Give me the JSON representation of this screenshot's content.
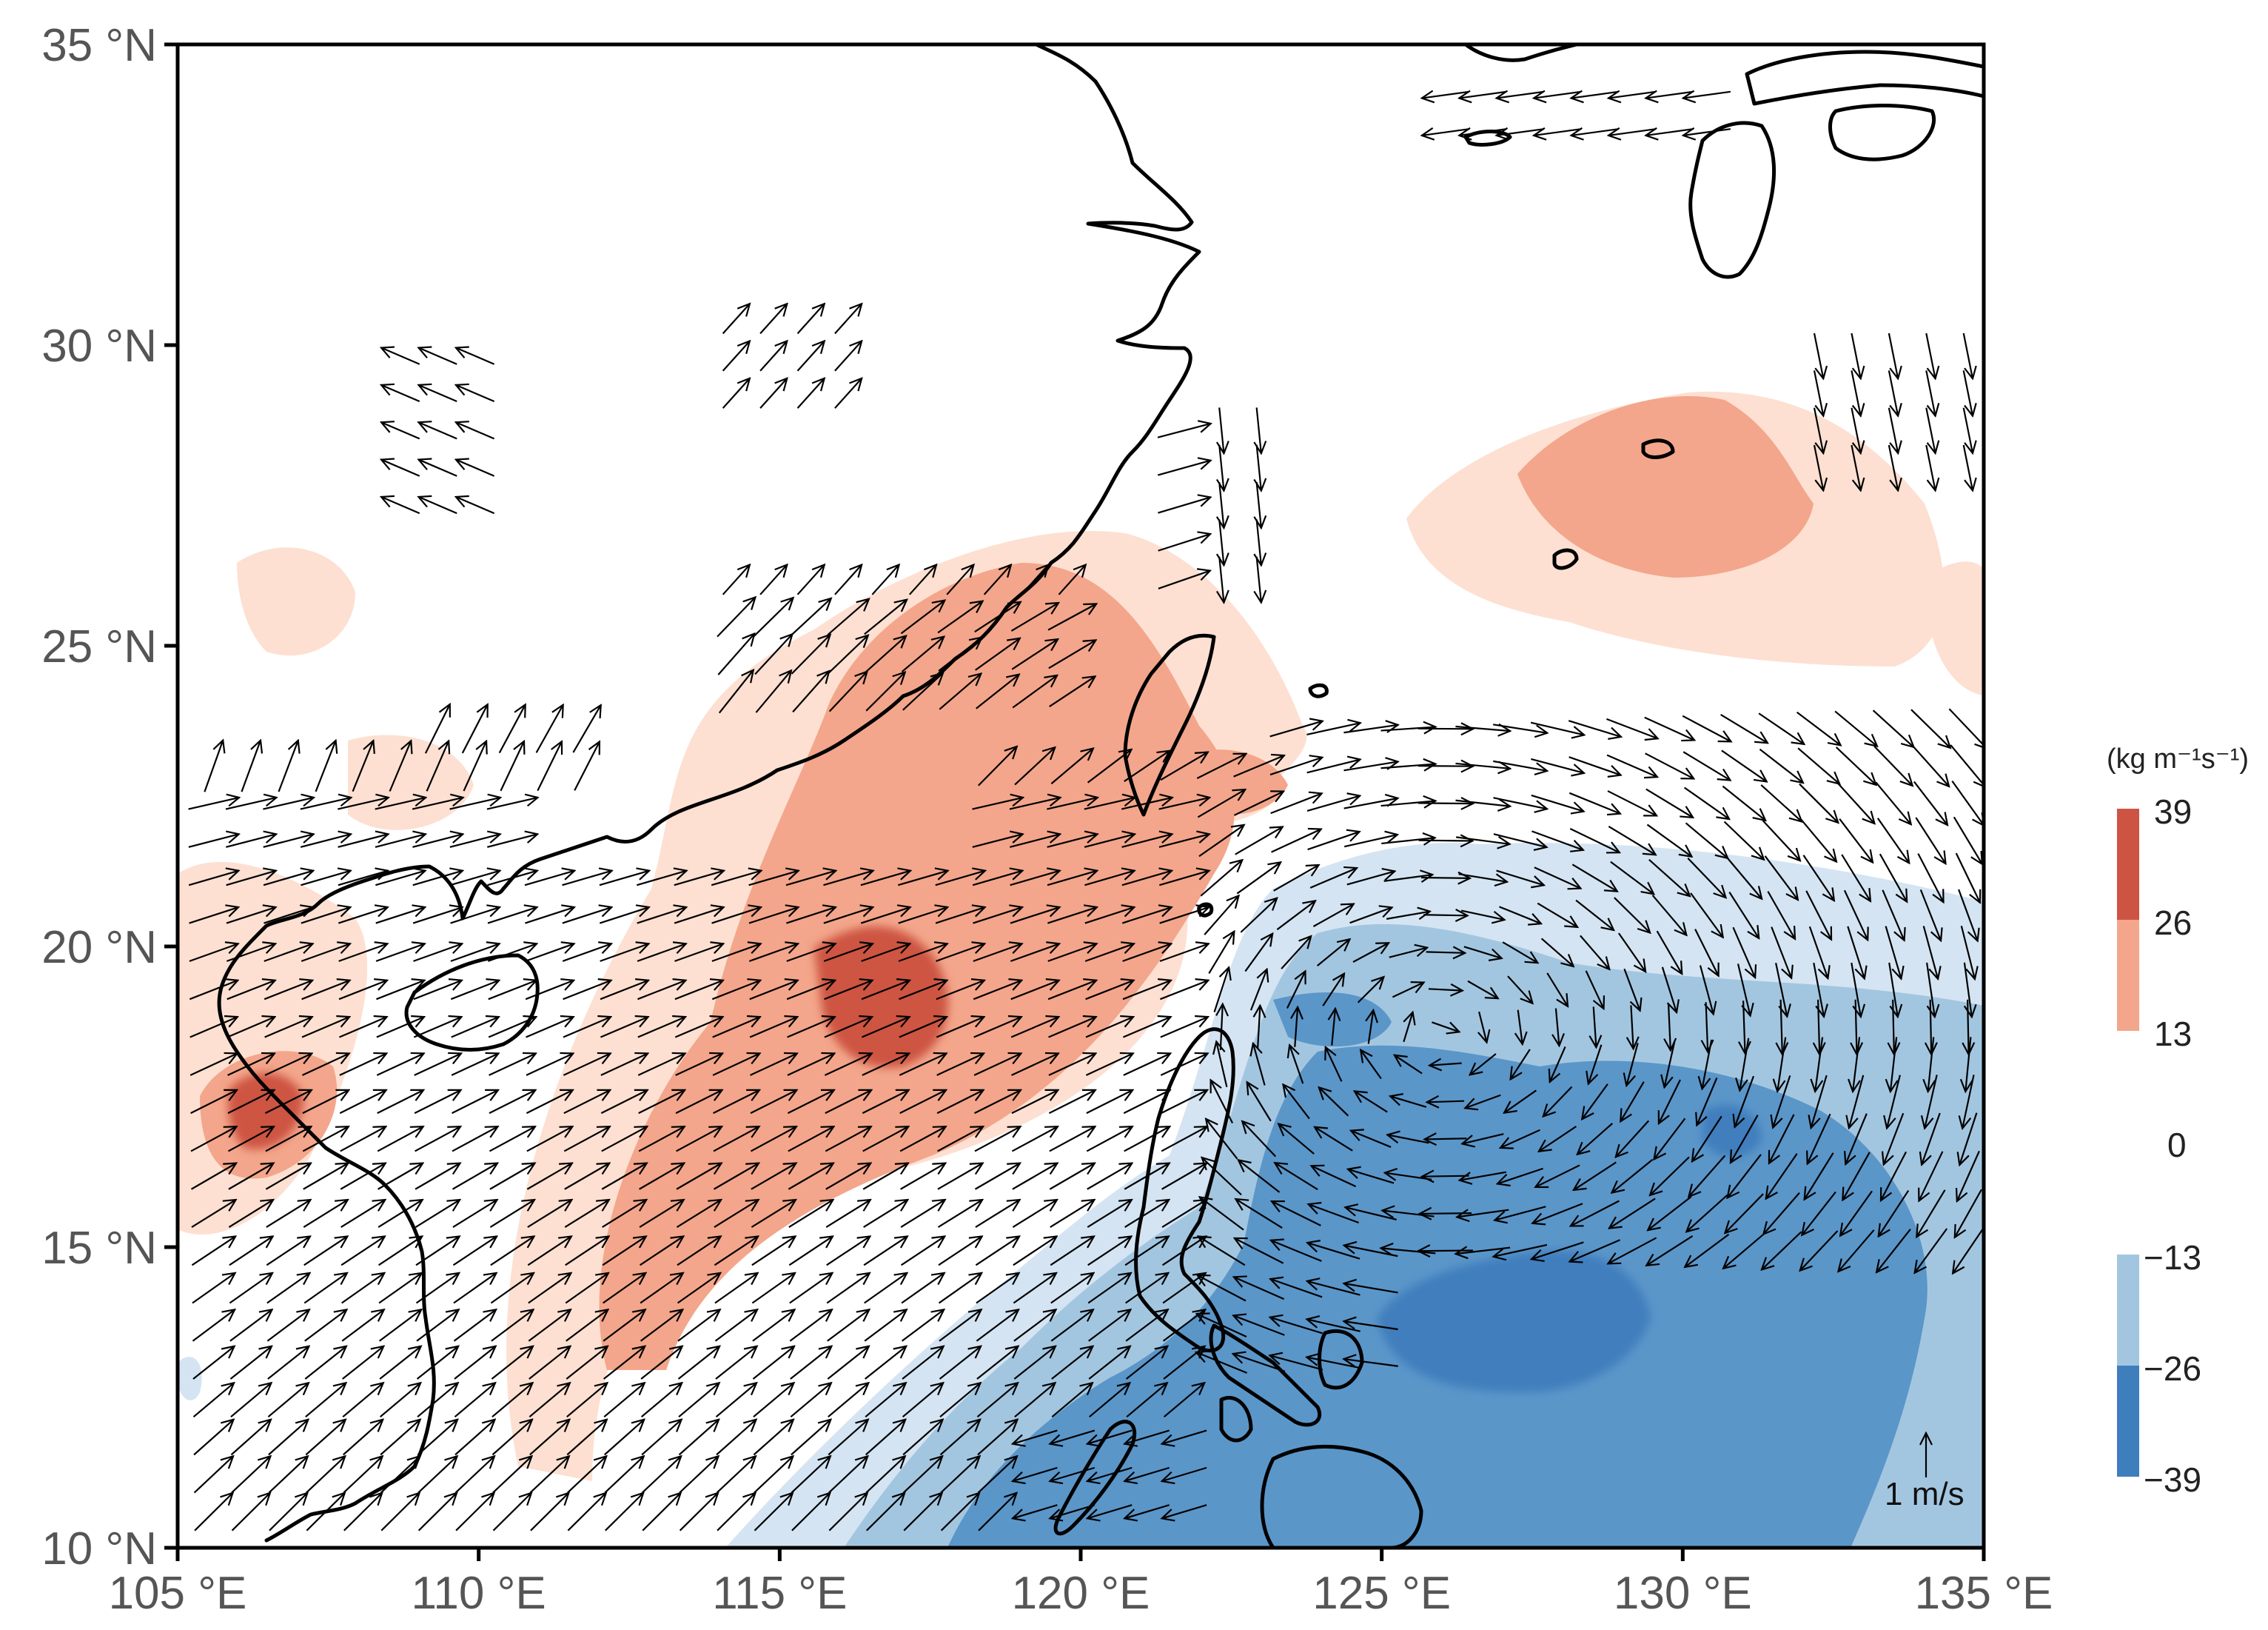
{
  "chart_data": {
    "type": "map",
    "lon_range": [
      105,
      135
    ],
    "lat_range": [
      10,
      35
    ],
    "x_ticks": [
      {
        "value": 105,
        "label": "105 °E"
      },
      {
        "value": 110,
        "label": "110 °E"
      },
      {
        "value": 115,
        "label": "115 °E"
      },
      {
        "value": 120,
        "label": "120 °E"
      },
      {
        "value": 125,
        "label": "125 °E"
      },
      {
        "value": 130,
        "label": "130 °E"
      },
      {
        "value": 135,
        "label": "135 °E"
      }
    ],
    "y_ticks": [
      {
        "value": 10,
        "label": "10 °N"
      },
      {
        "value": 15,
        "label": "15 °N"
      },
      {
        "value": 20,
        "label": "20 °N"
      },
      {
        "value": 25,
        "label": "25 °N"
      },
      {
        "value": 30,
        "label": "30 °N"
      },
      {
        "value": 35,
        "label": "35 °N"
      }
    ],
    "colorbar": {
      "unit": "(kg m⁻¹s⁻¹)",
      "labels": [
        "39",
        "26",
        "13",
        "0",
        "−13",
        "−26",
        "−39"
      ],
      "levels": [
        {
          "from": 26,
          "to": 39,
          "color": "#cd5443"
        },
        {
          "from": 13,
          "to": 26,
          "color": "#f3a68b"
        },
        {
          "from": -26,
          "to": -13,
          "color": "#a3c6e0"
        },
        {
          "from": -39,
          "to": -26,
          "color": "#3f7ebd"
        }
      ]
    },
    "reference_vector": {
      "label": "1 m/s",
      "lon": 134.0,
      "lat": 11.3,
      "u": 0,
      "v": 1
    },
    "positive_anomalies": [
      {
        "name": "south-china-sea-max",
        "lon": 116.5,
        "lat": 19.5,
        "peak": 35
      },
      {
        "name": "gulf-of-tonkin-max",
        "lon": 106.8,
        "lat": 17.3,
        "peak": 30
      },
      {
        "name": "east-china-sea-max",
        "lon": 129.5,
        "lat": 27.5,
        "peak": 22
      },
      {
        "name": "luzon-strait-max",
        "lon": 121.5,
        "lat": 22.5,
        "peak": 22
      }
    ],
    "negative_anomalies": [
      {
        "name": "philippine-sea-min",
        "lon": 127.5,
        "lat": 13.5,
        "peak": -32
      },
      {
        "name": "western-pacific-min",
        "lon": 131,
        "lat": 16.5,
        "peak": -26
      }
    ],
    "vector_field": "anticyclonic flow: southwesterlies over South China Sea turning to westerlies near 22 °N, easterly-to-southeasterly flow over Philippine Sea"
  }
}
